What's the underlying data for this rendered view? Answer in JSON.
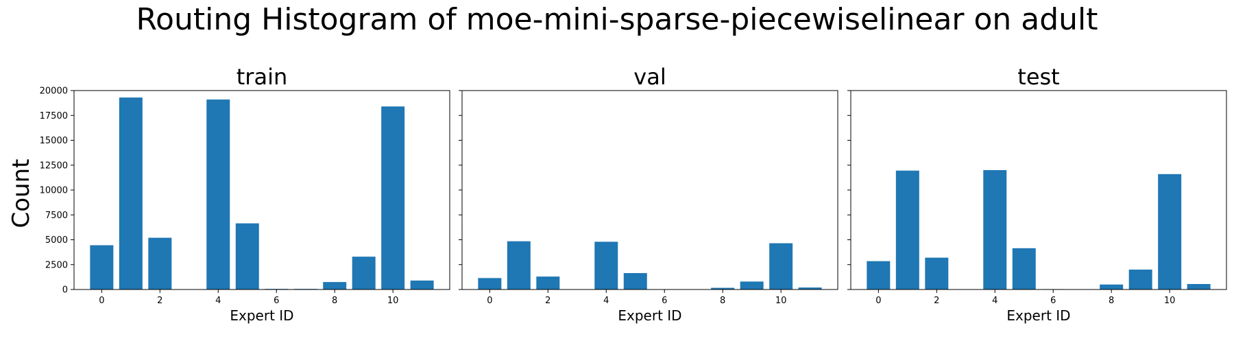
{
  "figure_title": "Routing Histogram of moe-mini-sparse-piecewiselinear on adult",
  "shared_ylabel": "Count",
  "chart_data": [
    {
      "type": "bar",
      "title": "train",
      "xlabel": "Expert ID",
      "ylabel": "Count",
      "x": [
        0,
        1,
        2,
        3,
        4,
        5,
        6,
        7,
        8,
        9,
        10,
        11
      ],
      "values": [
        4450,
        19300,
        5200,
        0,
        19100,
        6650,
        60,
        60,
        750,
        3300,
        18400,
        900
      ],
      "xticks": [
        0,
        2,
        4,
        6,
        8,
        10
      ],
      "yticks": [
        0,
        2500,
        5000,
        7500,
        10000,
        12500,
        15000,
        17500,
        20000
      ],
      "ylim": [
        0,
        20000
      ],
      "color": "#1f77b4"
    },
    {
      "type": "bar",
      "title": "val",
      "xlabel": "Expert ID",
      "ylabel": "",
      "x": [
        0,
        1,
        2,
        3,
        4,
        5,
        6,
        7,
        8,
        9,
        10,
        11
      ],
      "values": [
        1150,
        4850,
        1300,
        0,
        4800,
        1650,
        0,
        0,
        170,
        800,
        4650,
        200
      ],
      "xticks": [
        0,
        2,
        4,
        6,
        8,
        10
      ],
      "yticks": [
        0,
        2500,
        5000,
        7500,
        10000,
        12500,
        15000,
        17500,
        20000
      ],
      "ylim": [
        0,
        20000
      ],
      "color": "#1f77b4"
    },
    {
      "type": "bar",
      "title": "test",
      "xlabel": "Expert ID",
      "ylabel": "",
      "x": [
        0,
        1,
        2,
        3,
        4,
        5,
        6,
        7,
        8,
        9,
        10,
        11
      ],
      "values": [
        2850,
        11950,
        3200,
        0,
        12000,
        4150,
        40,
        0,
        500,
        2000,
        11600,
        550
      ],
      "xticks": [
        0,
        2,
        4,
        6,
        8,
        10
      ],
      "yticks": [
        0,
        2500,
        5000,
        7500,
        10000,
        12500,
        15000,
        17500,
        20000
      ],
      "ylim": [
        0,
        20000
      ],
      "color": "#1f77b4"
    }
  ]
}
